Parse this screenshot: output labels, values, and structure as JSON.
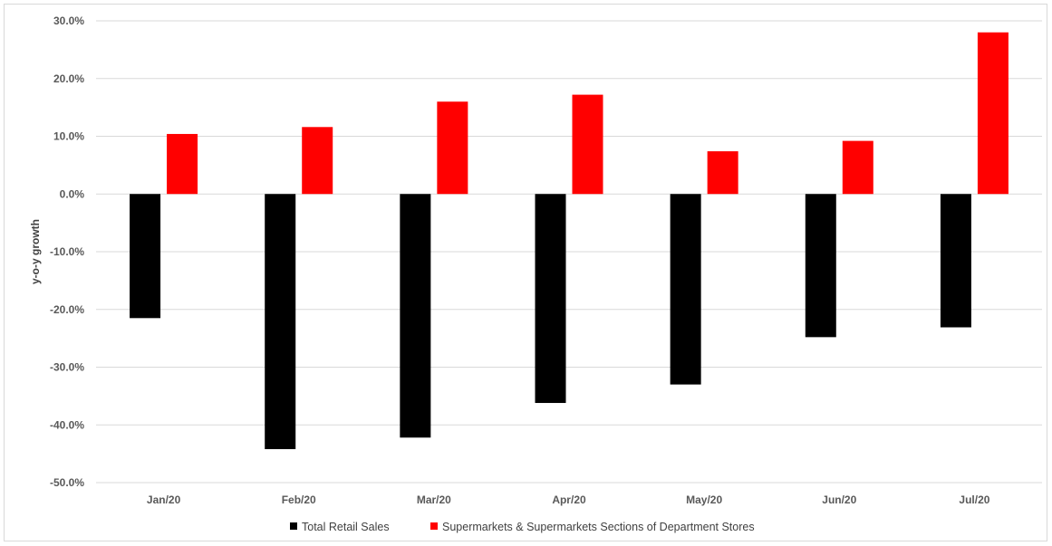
{
  "chart_data": {
    "type": "bar",
    "title": "",
    "xlabel": "",
    "ylabel": "y-o-y growth",
    "categories": [
      "Jan/20",
      "Feb/20",
      "Mar/20",
      "Apr/20",
      "May/20",
      "Jun/20",
      "Jul/20"
    ],
    "series": [
      {
        "name": "Total Retail Sales",
        "color": "#000000",
        "values": [
          -21.5,
          -44.2,
          -42.2,
          -36.2,
          -33.0,
          -24.8,
          -23.1
        ]
      },
      {
        "name": "Supermarkets & Supermarkets Sections of Department Stores",
        "color": "#ff0000",
        "values": [
          10.4,
          11.6,
          16.0,
          17.2,
          7.4,
          9.2,
          28.0
        ]
      }
    ],
    "ylim": [
      -50,
      30
    ],
    "yticks": [
      30,
      20,
      10,
      0,
      -10,
      -20,
      -30,
      -40,
      -50
    ],
    "ytick_labels": [
      "30.0%",
      "20.0%",
      "10.0%",
      "0.0%",
      "-10.0%",
      "-20.0%",
      "-30.0%",
      "-40.0%",
      "-50.0%"
    ],
    "grid": true,
    "legend_position": "bottom"
  }
}
